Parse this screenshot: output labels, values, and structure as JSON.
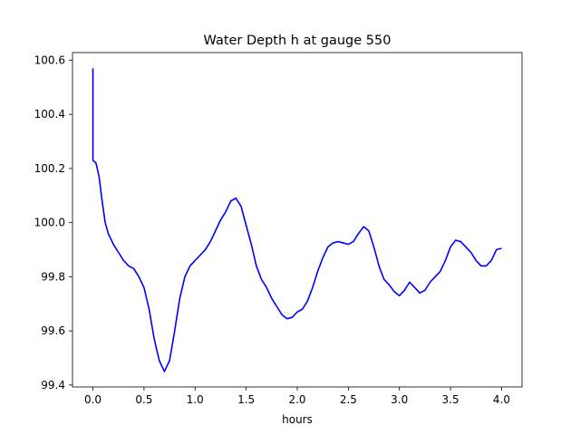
{
  "chart_data": {
    "type": "line",
    "title": "Water Depth h at gauge 550",
    "xlabel": "hours",
    "ylabel": "",
    "xlim": [
      -0.2,
      4.2
    ],
    "ylim": [
      99.393,
      100.628
    ],
    "grid": false,
    "xticks": [
      0.0,
      0.5,
      1.0,
      1.5,
      2.0,
      2.5,
      3.0,
      3.5,
      4.0
    ],
    "xtick_labels": [
      "0.0",
      "0.5",
      "1.0",
      "1.5",
      "2.0",
      "2.5",
      "3.0",
      "3.5",
      "4.0"
    ],
    "yticks": [
      99.4,
      99.6,
      99.8,
      100.0,
      100.2,
      100.4,
      100.6
    ],
    "ytick_labels": [
      "99.4",
      "99.6",
      "99.8",
      "100.0",
      "100.2",
      "100.4",
      "100.6"
    ],
    "colors": {
      "line": "#0000ff",
      "axes": "#000000",
      "background": "#ffffff"
    },
    "series": [
      {
        "x": [
          0.0,
          0.0,
          0.0,
          0.03,
          0.06,
          0.09,
          0.12,
          0.15,
          0.2,
          0.25,
          0.3,
          0.35,
          0.4,
          0.45,
          0.5,
          0.55,
          0.6,
          0.65,
          0.7,
          0.75,
          0.8,
          0.85,
          0.9,
          0.95,
          1.0,
          1.05,
          1.1,
          1.15,
          1.2,
          1.25,
          1.3,
          1.35,
          1.4,
          1.45,
          1.5,
          1.55,
          1.6,
          1.65,
          1.7,
          1.75,
          1.8,
          1.85,
          1.9,
          1.95,
          2.0,
          2.05,
          2.1,
          2.15,
          2.2,
          2.25,
          2.3,
          2.35,
          2.4,
          2.45,
          2.5,
          2.55,
          2.6,
          2.65,
          2.7,
          2.75,
          2.8,
          2.85,
          2.9,
          2.95,
          3.0,
          3.05,
          3.1,
          3.15,
          3.2,
          3.25,
          3.3,
          3.35,
          3.4,
          3.45,
          3.5,
          3.55,
          3.6,
          3.65,
          3.7,
          3.75,
          3.8,
          3.85,
          3.9,
          3.95,
          4.0
        ],
        "y": [
          100.57,
          100.23,
          100.23,
          100.22,
          100.17,
          100.08,
          100.0,
          99.96,
          99.92,
          99.89,
          99.86,
          99.84,
          99.83,
          99.8,
          99.76,
          99.68,
          99.57,
          99.49,
          99.45,
          99.49,
          99.6,
          99.72,
          99.8,
          99.84,
          99.86,
          99.88,
          99.9,
          99.93,
          99.97,
          100.01,
          100.04,
          100.08,
          100.09,
          100.06,
          99.99,
          99.92,
          99.84,
          99.79,
          99.76,
          99.72,
          99.69,
          99.66,
          99.645,
          99.65,
          99.67,
          99.68,
          99.71,
          99.76,
          99.82,
          99.87,
          99.91,
          99.925,
          99.93,
          99.925,
          99.92,
          99.93,
          99.96,
          99.985,
          99.97,
          99.91,
          99.84,
          99.79,
          99.77,
          99.745,
          99.73,
          99.75,
          99.78,
          99.76,
          99.74,
          99.75,
          99.78,
          99.8,
          99.82,
          99.86,
          99.91,
          99.935,
          99.93,
          99.91,
          99.89,
          99.86,
          99.84,
          99.84,
          99.86,
          99.9,
          99.905
        ]
      }
    ]
  }
}
